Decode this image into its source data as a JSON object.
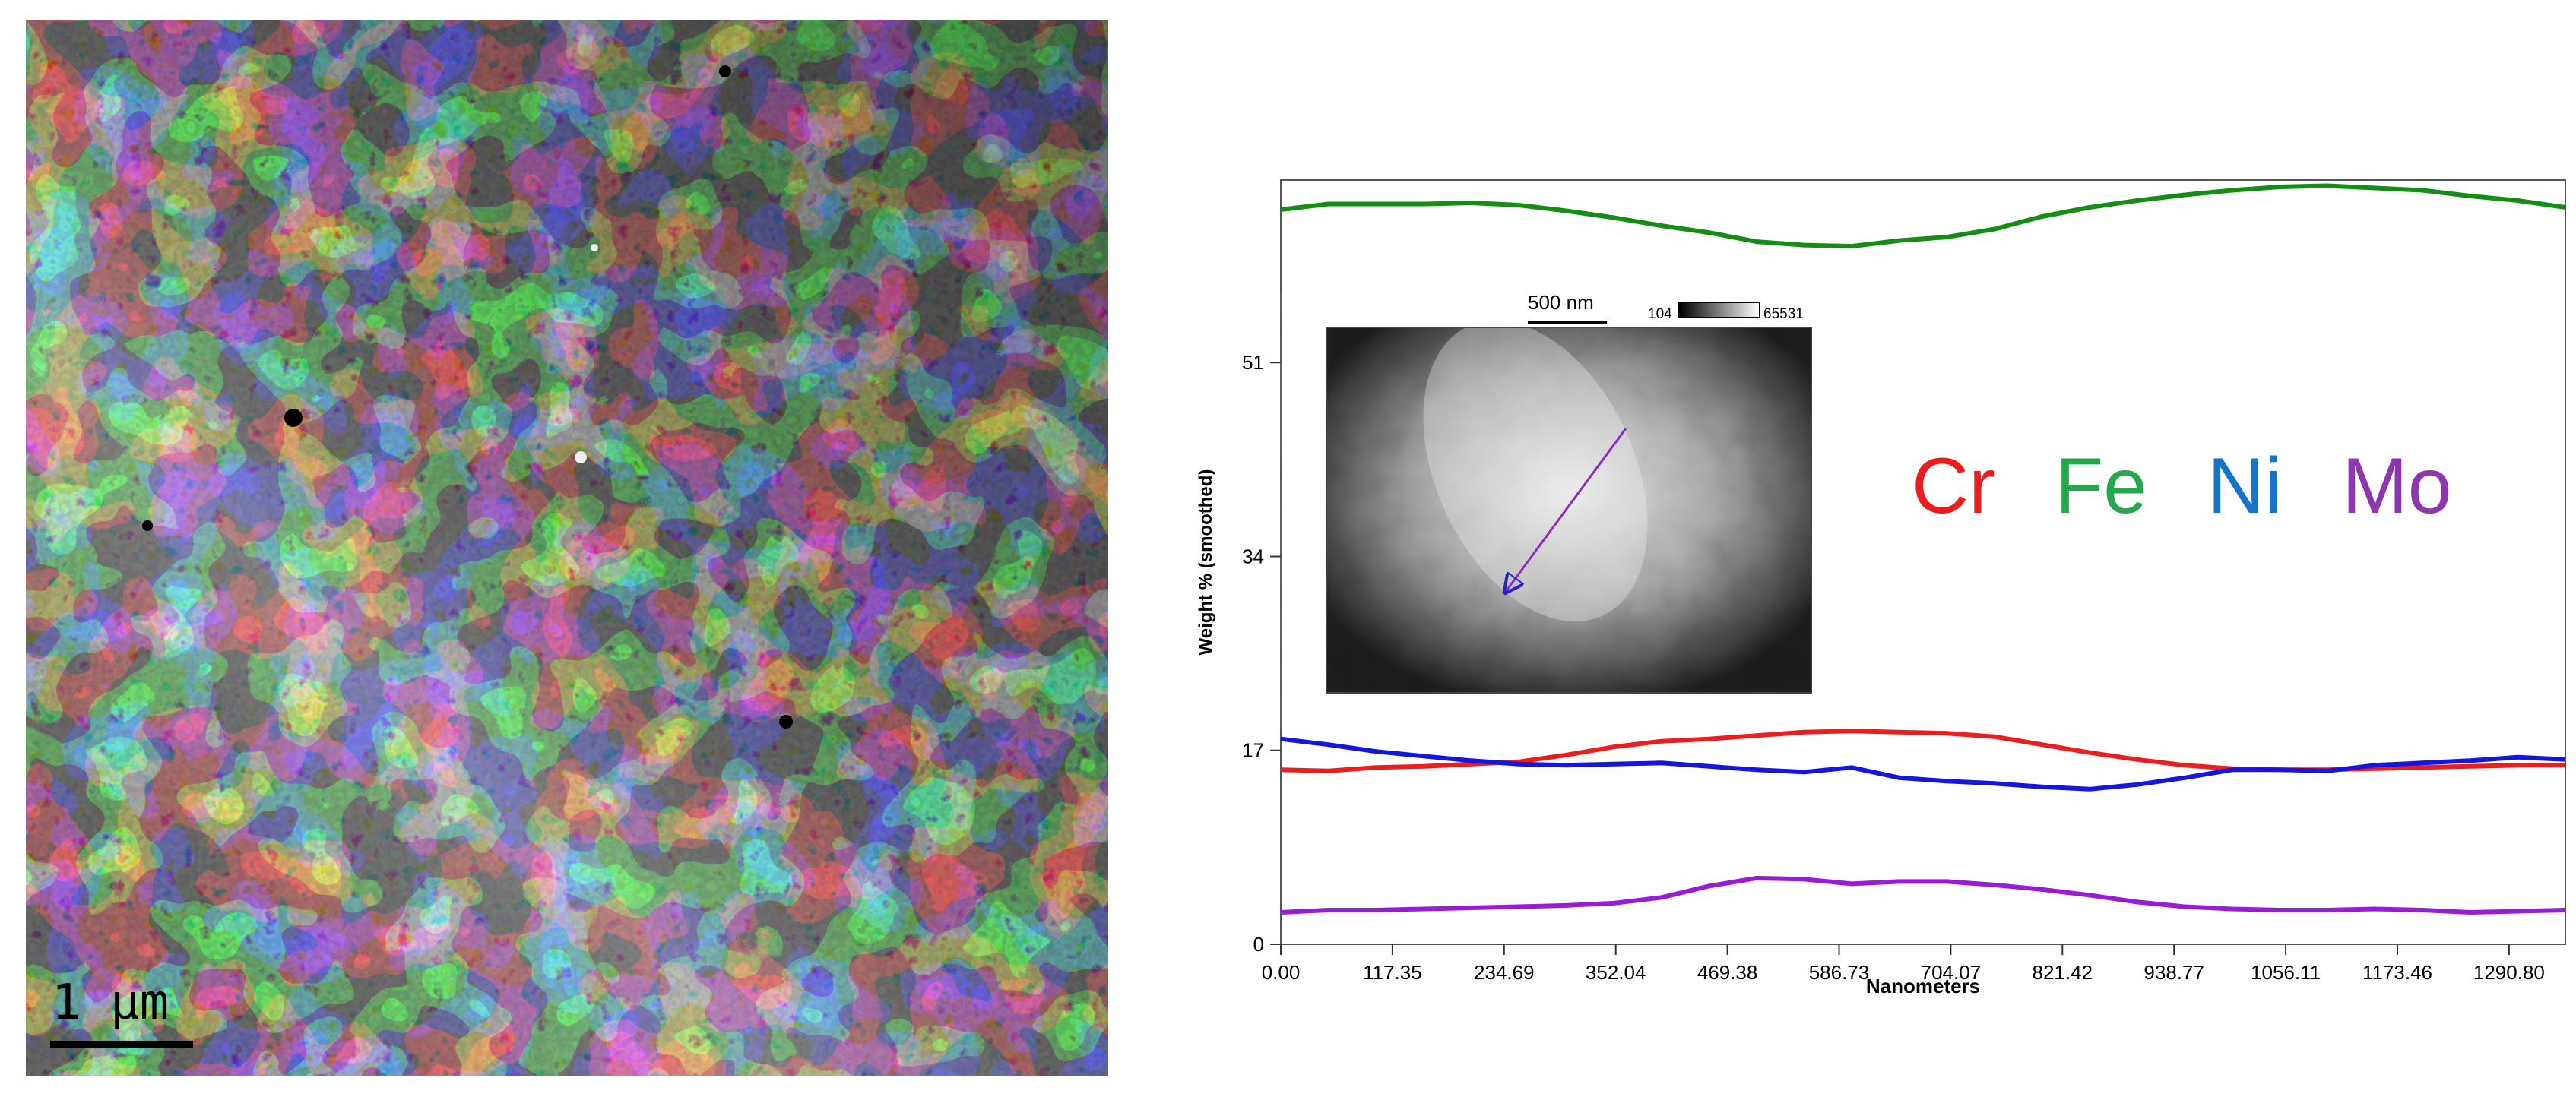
{
  "micrograph": {
    "scale_label": "1 μm"
  },
  "chart_data": {
    "type": "line",
    "xlabel": "Nanometers",
    "ylabel": "Weight % (smoothed)",
    "xlim": [
      0,
      1350
    ],
    "ylim": [
      0,
      67
    ],
    "xticks": [
      "0.00",
      "117.35",
      "234.69",
      "352.04",
      "469.38",
      "586.73",
      "704.07",
      "821.42",
      "938.77",
      "1056.11",
      "1173.46",
      "1290.80"
    ],
    "yticks": [
      "0",
      "17",
      "34",
      "51"
    ],
    "x": [
      0,
      50,
      100,
      150,
      200,
      250,
      300,
      350,
      400,
      450,
      500,
      550,
      600,
      650,
      700,
      750,
      800,
      850,
      900,
      950,
      1000,
      1050,
      1100,
      1150,
      1200,
      1250,
      1300,
      1350
    ],
    "series": [
      {
        "name": "Cr",
        "color": "#ee1c1c",
        "values": [
          15.3,
          15.2,
          15.5,
          15.6,
          15.8,
          16.0,
          16.6,
          17.3,
          17.8,
          18.0,
          18.3,
          18.6,
          18.7,
          18.6,
          18.5,
          18.2,
          17.5,
          16.8,
          16.2,
          15.7,
          15.4,
          15.3,
          15.3,
          15.4,
          15.5,
          15.6,
          15.7,
          15.7
        ]
      },
      {
        "name": "Fe",
        "color": "#138d13",
        "values": [
          64.4,
          64.9,
          64.9,
          64.9,
          65.0,
          64.8,
          64.3,
          63.7,
          63.0,
          62.4,
          61.6,
          61.3,
          61.2,
          61.7,
          62.0,
          62.7,
          63.8,
          64.6,
          65.2,
          65.7,
          66.1,
          66.4,
          66.5,
          66.3,
          66.1,
          65.6,
          65.2,
          64.6
        ]
      },
      {
        "name": "Ni",
        "color": "#1515e0",
        "values": [
          18.0,
          17.5,
          16.9,
          16.5,
          16.1,
          15.8,
          15.7,
          15.8,
          15.9,
          15.6,
          15.3,
          15.1,
          15.5,
          14.6,
          14.3,
          14.1,
          13.8,
          13.6,
          14.0,
          14.6,
          15.3,
          15.3,
          15.2,
          15.7,
          15.9,
          16.1,
          16.4,
          16.2
        ]
      },
      {
        "name": "Mo",
        "color": "#9a1ad8",
        "values": [
          2.8,
          3.0,
          3.0,
          3.1,
          3.2,
          3.3,
          3.4,
          3.6,
          4.1,
          5.1,
          5.8,
          5.7,
          5.3,
          5.5,
          5.5,
          5.2,
          4.8,
          4.3,
          3.7,
          3.3,
          3.1,
          3.0,
          3.0,
          3.1,
          3.0,
          2.8,
          2.9,
          3.0
        ]
      }
    ],
    "legend": [
      {
        "label": "Cr",
        "color": "#ee1c1c"
      },
      {
        "label": "Fe",
        "color": "#25a84c"
      },
      {
        "label": "Ni",
        "color": "#1573c9"
      },
      {
        "label": "Mo",
        "color": "#8e35b0"
      }
    ],
    "legend_placement": "right-middle",
    "grid": false
  },
  "inset": {
    "scale_label": "500 nm",
    "colorbar_min": "104",
    "colorbar_max": "65531"
  }
}
